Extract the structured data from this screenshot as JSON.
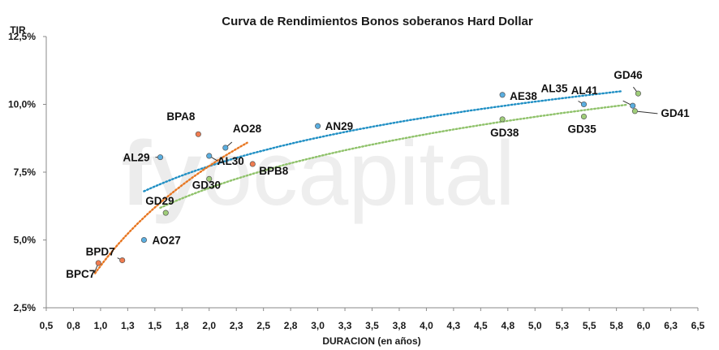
{
  "chart_data": {
    "type": "scatter",
    "title": "Curva de Rendimientos Bonos soberanos Hard Dollar",
    "xlabel": "DURACION (en años)",
    "ylabel": "TIR",
    "xlim": [
      0.5,
      6.5
    ],
    "ylim": [
      2.5,
      12.5
    ],
    "x_ticks": [
      "0,5",
      "0,8",
      "1,0",
      "1,3",
      "1,5",
      "1,8",
      "2,0",
      "2,3",
      "2,5",
      "2,8",
      "3,0",
      "3,3",
      "3,5",
      "3,8",
      "4,0",
      "4,3",
      "4,5",
      "4,8",
      "5,0",
      "5,3",
      "5,5",
      "5,8",
      "6,0",
      "6,3",
      "6,5"
    ],
    "y_ticks": [
      {
        "value": 2.5,
        "label": "2,5%"
      },
      {
        "value": 5.0,
        "label": "5,0%"
      },
      {
        "value": 7.5,
        "label": "7,5%"
      },
      {
        "value": 10.0,
        "label": "10,0%"
      },
      {
        "value": 12.5,
        "label": "12,5%"
      }
    ],
    "grid": false,
    "watermark": "fyocapital",
    "series": [
      {
        "color": "#5aaee0",
        "trendline_color": "#1f8fc4",
        "points": [
          {
            "label": "AL29",
            "x": 1.55,
            "y": 8.05
          },
          {
            "label": "AL30",
            "x": 2.0,
            "y": 8.1
          },
          {
            "label": "AO28",
            "x": 2.15,
            "y": 8.4
          },
          {
            "label": "AO27",
            "x": 1.4,
            "y": 5.0
          },
          {
            "label": "AN29",
            "x": 3.0,
            "y": 9.2
          },
          {
            "label": "AE38",
            "x": 4.7,
            "y": 10.35
          },
          {
            "label": "AL35",
            "x": 5.45,
            "y": 10.0
          },
          {
            "label": "AL41",
            "x": 5.9,
            "y": 9.95
          }
        ],
        "trend": {
          "from": 1.4,
          "to": 5.8
        }
      },
      {
        "color": "#f07c50",
        "trendline_color": "#e87722",
        "points": [
          {
            "label": "BPA8",
            "x": 1.9,
            "y": 8.9
          },
          {
            "label": "BPB8",
            "x": 2.4,
            "y": 7.8
          },
          {
            "label": "BPD7",
            "x": 1.2,
            "y": 4.25
          },
          {
            "label": "BPC7",
            "x": 0.98,
            "y": 4.15
          }
        ],
        "trend": {
          "from": 0.95,
          "to": 2.35
        }
      },
      {
        "color": "#9fcd79",
        "trendline_color": "#8fc26a",
        "points": [
          {
            "label": "GD29",
            "x": 1.6,
            "y": 6.0
          },
          {
            "label": "GD30",
            "x": 2.0,
            "y": 7.25
          },
          {
            "label": "GD38",
            "x": 4.7,
            "y": 9.45
          },
          {
            "label": "GD35",
            "x": 5.45,
            "y": 9.55
          },
          {
            "label": "GD46",
            "x": 5.95,
            "y": 10.4
          },
          {
            "label": "GD41",
            "x": 5.92,
            "y": 9.75
          }
        ],
        "trend": {
          "from": 1.55,
          "to": 5.85
        }
      }
    ]
  }
}
